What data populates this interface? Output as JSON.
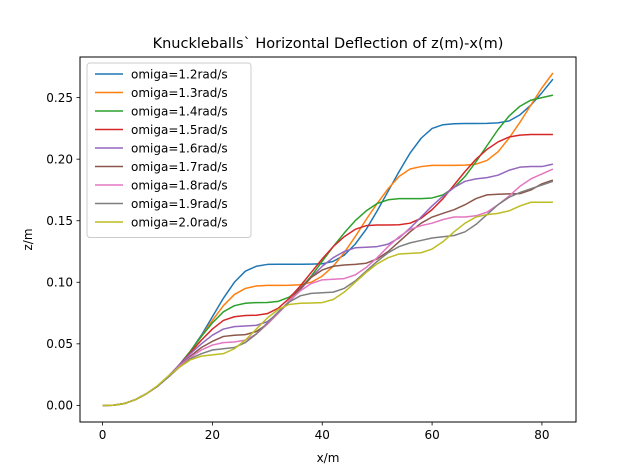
{
  "chart_data": {
    "type": "line",
    "title": "Knuckleballs` Horizontal Deflection of z(m)-x(m)",
    "xlabel": "x/m",
    "ylabel": "z/m",
    "xlim": [
      -4.1,
      86.2
    ],
    "ylim": [
      -0.0135,
      0.283
    ],
    "xticks": [
      0,
      20,
      40,
      60,
      80
    ],
    "xtick_labels": [
      "0",
      "20",
      "40",
      "60",
      "80"
    ],
    "yticks": [
      0.0,
      0.05,
      0.1,
      0.15,
      0.2,
      0.25
    ],
    "ytick_labels": [
      "0.00",
      "0.05",
      "0.10",
      "0.15",
      "0.20",
      "0.25"
    ],
    "legend_position": "upper-left",
    "grid": false,
    "series": [
      {
        "name": "omiga=1.2rad/s",
        "color": "#1f77b4",
        "omega": 1.2,
        "x": [
          0,
          2,
          4,
          6,
          8,
          10,
          12,
          14,
          16,
          18,
          20,
          22,
          24,
          26,
          28,
          30,
          32,
          34,
          36,
          38,
          40,
          42,
          44,
          46,
          48,
          50,
          52,
          54,
          56,
          58,
          60,
          62,
          64,
          66,
          68,
          70,
          72,
          74,
          76,
          78,
          80,
          82
        ],
        "y": [
          0.0,
          0.0001,
          0.0015,
          0.0047,
          0.0095,
          0.0155,
          0.0235,
          0.033,
          0.044,
          0.057,
          0.072,
          0.087,
          0.1,
          0.109,
          0.113,
          0.1145,
          0.1146,
          0.1146,
          0.1146,
          0.1147,
          0.115,
          0.117,
          0.122,
          0.131,
          0.143,
          0.158,
          0.174,
          0.19,
          0.205,
          0.217,
          0.225,
          0.228,
          0.2288,
          0.229,
          0.229,
          0.2291,
          0.2295,
          0.231,
          0.236,
          0.244,
          0.254,
          0.265
        ]
      },
      {
        "name": "omiga=1.3rad/s",
        "color": "#ff7f0e",
        "omega": 1.3,
        "x": [
          0,
          2,
          4,
          6,
          8,
          10,
          12,
          14,
          16,
          18,
          20,
          22,
          24,
          26,
          28,
          30,
          32,
          34,
          36,
          38,
          40,
          42,
          44,
          46,
          48,
          50,
          52,
          54,
          56,
          58,
          60,
          62,
          64,
          66,
          68,
          70,
          72,
          74,
          76,
          78,
          80,
          82
        ],
        "y": [
          0.0,
          0.0001,
          0.0015,
          0.0047,
          0.0095,
          0.0155,
          0.0235,
          0.033,
          0.044,
          0.056,
          0.069,
          0.081,
          0.09,
          0.095,
          0.097,
          0.0975,
          0.0975,
          0.0976,
          0.098,
          0.1,
          0.105,
          0.113,
          0.124,
          0.137,
          0.151,
          0.164,
          0.176,
          0.186,
          0.192,
          0.194,
          0.195,
          0.195,
          0.195,
          0.1952,
          0.196,
          0.199,
          0.206,
          0.217,
          0.23,
          0.244,
          0.258,
          0.27
        ]
      },
      {
        "name": "omiga=1.4rad/s",
        "color": "#2ca02c",
        "omega": 1.4,
        "x": [
          0,
          2,
          4,
          6,
          8,
          10,
          12,
          14,
          16,
          18,
          20,
          22,
          24,
          26,
          28,
          30,
          32,
          34,
          36,
          38,
          40,
          42,
          44,
          46,
          48,
          50,
          52,
          54,
          56,
          58,
          60,
          62,
          64,
          66,
          68,
          70,
          72,
          74,
          76,
          78,
          80,
          82
        ],
        "y": [
          0.0,
          0.0001,
          0.0015,
          0.0047,
          0.0095,
          0.0155,
          0.0235,
          0.033,
          0.044,
          0.056,
          0.067,
          0.076,
          0.081,
          0.083,
          0.0835,
          0.0836,
          0.0845,
          0.088,
          0.095,
          0.105,
          0.117,
          0.129,
          0.14,
          0.15,
          0.158,
          0.164,
          0.167,
          0.168,
          0.168,
          0.168,
          0.1685,
          0.171,
          0.177,
          0.186,
          0.198,
          0.211,
          0.224,
          0.235,
          0.243,
          0.248,
          0.25,
          0.252
        ]
      },
      {
        "name": "omiga=1.5rad/s",
        "color": "#d62728",
        "omega": 1.5,
        "x": [
          0,
          2,
          4,
          6,
          8,
          10,
          12,
          14,
          16,
          18,
          20,
          22,
          24,
          26,
          28,
          30,
          32,
          34,
          36,
          38,
          40,
          42,
          44,
          46,
          48,
          50,
          52,
          54,
          56,
          58,
          60,
          62,
          64,
          66,
          68,
          70,
          72,
          74,
          76,
          78,
          80,
          82
        ],
        "y": [
          0.0,
          0.0001,
          0.0015,
          0.0047,
          0.0095,
          0.0155,
          0.0235,
          0.033,
          0.043,
          0.053,
          0.062,
          0.069,
          0.072,
          0.073,
          0.0732,
          0.0745,
          0.079,
          0.087,
          0.097,
          0.108,
          0.119,
          0.129,
          0.137,
          0.143,
          0.146,
          0.1465,
          0.1465,
          0.1467,
          0.148,
          0.152,
          0.159,
          0.168,
          0.179,
          0.19,
          0.2,
          0.208,
          0.214,
          0.218,
          0.2195,
          0.22,
          0.22,
          0.22
        ]
      },
      {
        "name": "omiga=1.6rad/s",
        "color": "#9467bd",
        "omega": 1.6,
        "x": [
          0,
          2,
          4,
          6,
          8,
          10,
          12,
          14,
          16,
          18,
          20,
          22,
          24,
          26,
          28,
          30,
          32,
          34,
          36,
          38,
          40,
          42,
          44,
          46,
          48,
          50,
          52,
          54,
          56,
          58,
          60,
          62,
          64,
          66,
          68,
          70,
          72,
          74,
          76,
          78,
          80,
          82
        ],
        "y": [
          0.0,
          0.0001,
          0.0015,
          0.0047,
          0.0095,
          0.0155,
          0.0235,
          0.033,
          0.042,
          0.05,
          0.057,
          0.062,
          0.064,
          0.0645,
          0.065,
          0.068,
          0.075,
          0.084,
          0.094,
          0.104,
          0.113,
          0.12,
          0.125,
          0.128,
          0.1285,
          0.129,
          0.131,
          0.136,
          0.144,
          0.153,
          0.162,
          0.17,
          0.177,
          0.182,
          0.184,
          0.185,
          0.187,
          0.191,
          0.1935,
          0.194,
          0.194,
          0.196
        ]
      },
      {
        "name": "omiga=1.7rad/s",
        "color": "#8c564b",
        "omega": 1.7,
        "x": [
          0,
          2,
          4,
          6,
          8,
          10,
          12,
          14,
          16,
          18,
          20,
          22,
          24,
          26,
          28,
          30,
          32,
          34,
          36,
          38,
          40,
          42,
          44,
          46,
          48,
          50,
          52,
          54,
          56,
          58,
          60,
          62,
          64,
          66,
          68,
          70,
          72,
          74,
          76,
          78,
          80,
          82
        ],
        "y": [
          0.0,
          0.0001,
          0.0015,
          0.0047,
          0.0095,
          0.0155,
          0.0235,
          0.032,
          0.04,
          0.047,
          0.052,
          0.056,
          0.057,
          0.0575,
          0.06,
          0.066,
          0.075,
          0.085,
          0.095,
          0.104,
          0.11,
          0.113,
          0.114,
          0.1145,
          0.1155,
          0.119,
          0.125,
          0.133,
          0.141,
          0.148,
          0.153,
          0.156,
          0.159,
          0.163,
          0.168,
          0.171,
          0.1715,
          0.1718,
          0.172,
          0.175,
          0.18,
          0.183
        ]
      },
      {
        "name": "omiga=1.8rad/s",
        "color": "#e377c2",
        "omega": 1.8,
        "x": [
          0,
          2,
          4,
          6,
          8,
          10,
          12,
          14,
          16,
          18,
          20,
          22,
          24,
          26,
          28,
          30,
          32,
          34,
          36,
          38,
          40,
          42,
          44,
          46,
          48,
          50,
          52,
          54,
          56,
          58,
          60,
          62,
          64,
          66,
          68,
          70,
          72,
          74,
          76,
          78,
          80,
          82
        ],
        "y": [
          0.0,
          0.0001,
          0.0015,
          0.0047,
          0.0095,
          0.0155,
          0.0235,
          0.032,
          0.039,
          0.045,
          0.049,
          0.051,
          0.0515,
          0.053,
          0.058,
          0.066,
          0.075,
          0.085,
          0.093,
          0.099,
          0.102,
          0.1025,
          0.103,
          0.106,
          0.112,
          0.12,
          0.129,
          0.137,
          0.143,
          0.146,
          0.148,
          0.151,
          0.153,
          0.153,
          0.154,
          0.157,
          0.163,
          0.17,
          0.178,
          0.184,
          0.188,
          0.192
        ]
      },
      {
        "name": "omiga=1.9rad/s",
        "color": "#7f7f7f",
        "omega": 1.9,
        "x": [
          0,
          2,
          4,
          6,
          8,
          10,
          12,
          14,
          16,
          18,
          20,
          22,
          24,
          26,
          28,
          30,
          32,
          34,
          36,
          38,
          40,
          42,
          44,
          46,
          48,
          50,
          52,
          54,
          56,
          58,
          60,
          62,
          64,
          66,
          68,
          70,
          72,
          74,
          76,
          78,
          80,
          82
        ],
        "y": [
          0.0,
          0.0001,
          0.0015,
          0.0047,
          0.0095,
          0.0155,
          0.023,
          0.031,
          0.038,
          0.042,
          0.045,
          0.046,
          0.047,
          0.051,
          0.058,
          0.067,
          0.076,
          0.084,
          0.089,
          0.091,
          0.0915,
          0.092,
          0.095,
          0.101,
          0.109,
          0.117,
          0.124,
          0.129,
          0.132,
          0.134,
          0.136,
          0.137,
          0.138,
          0.141,
          0.147,
          0.155,
          0.163,
          0.169,
          0.173,
          0.176,
          0.179,
          0.182
        ]
      },
      {
        "name": "omiga=2.0rad/s",
        "color": "#bcbd22",
        "omega": 2.0,
        "x": [
          0,
          2,
          4,
          6,
          8,
          10,
          12,
          14,
          16,
          18,
          20,
          22,
          24,
          26,
          28,
          30,
          32,
          34,
          36,
          38,
          40,
          42,
          44,
          46,
          48,
          50,
          52,
          54,
          56,
          58,
          60,
          62,
          64,
          66,
          68,
          70,
          72,
          74,
          76,
          78,
          80,
          82
        ],
        "y": [
          0.0,
          0.0001,
          0.0015,
          0.0047,
          0.0095,
          0.016,
          0.024,
          0.031,
          0.037,
          0.04,
          0.041,
          0.042,
          0.046,
          0.053,
          0.062,
          0.071,
          0.078,
          0.082,
          0.083,
          0.0832,
          0.0835,
          0.086,
          0.092,
          0.1,
          0.108,
          0.115,
          0.12,
          0.123,
          0.1235,
          0.124,
          0.127,
          0.133,
          0.141,
          0.148,
          0.153,
          0.155,
          0.156,
          0.158,
          0.162,
          0.165,
          0.165,
          0.165
        ]
      }
    ]
  }
}
